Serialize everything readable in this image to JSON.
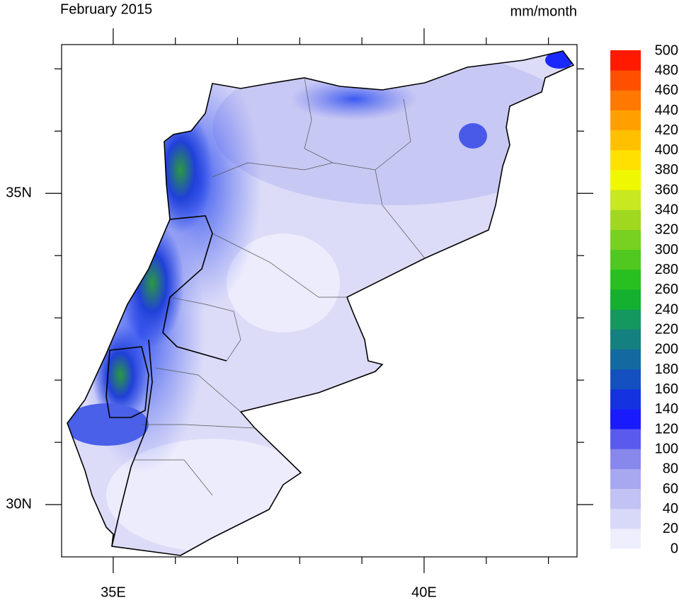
{
  "map": {
    "title": "February 2015",
    "units": "mm/month",
    "xlim": [
      34.17,
      42.46
    ],
    "ylim": [
      29.16,
      37.39
    ],
    "lon_ticks": [
      {
        "value": 35,
        "label": "35E"
      },
      {
        "value": 40,
        "label": "40E"
      }
    ],
    "lon_minor_ticks": [
      36,
      37,
      38,
      39,
      41,
      42
    ],
    "lat_ticks": [
      {
        "value": 30,
        "label": "30N"
      },
      {
        "value": 35,
        "label": "35N"
      }
    ],
    "lat_minor_ticks": [
      31,
      32,
      33,
      34,
      36,
      37
    ],
    "colorbar": {
      "levels": [
        0,
        20,
        40,
        60,
        80,
        100,
        120,
        140,
        160,
        180,
        200,
        220,
        240,
        260,
        280,
        300,
        320,
        340,
        360,
        380,
        400,
        420,
        440,
        460,
        480,
        500
      ],
      "colors": [
        "#eeeefd",
        "#d8d8f8",
        "#c2c2f4",
        "#a8a8f0",
        "#8888ec",
        "#5a5aee",
        "#1a1aff",
        "#1432e0",
        "#1450c0",
        "#146aa0",
        "#148080",
        "#149860",
        "#14b030",
        "#28c020",
        "#50c820",
        "#78d020",
        "#a0d820",
        "#c8e820",
        "#f0f800",
        "#ffe000",
        "#ffc000",
        "#ffa000",
        "#ff7800",
        "#ff5000",
        "#ff1a00"
      ]
    }
  }
}
